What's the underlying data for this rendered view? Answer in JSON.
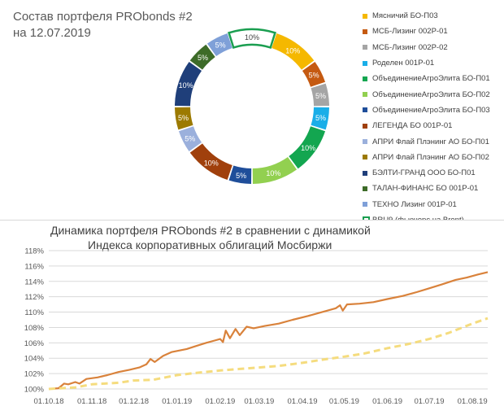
{
  "pie_panel": {
    "title_line1": "Состав портфеля PRObonds #2",
    "title_line2": "на 12.07.2019"
  },
  "line_panel": {
    "title_line1": "Динамика портфеля PRObonds #2 в сравнении с динамикой",
    "title_line2": "Индекса корпоративных облигаций Мосбиржи"
  },
  "chart_data": [
    {
      "type": "pie",
      "donut": true,
      "slices": [
        {
          "label": "Мясничий БО-П03",
          "value": 10,
          "data_label": "10%",
          "color": "#f5b800"
        },
        {
          "label": "МСБ-Лизинг 002Р-01",
          "value": 5,
          "data_label": "5%",
          "color": "#c55a11"
        },
        {
          "label": "МСБ-Лизинг 002Р-02",
          "value": 5,
          "data_label": "5%",
          "color": "#a5a5a5"
        },
        {
          "label": "Роделен 001Р-01",
          "value": 5,
          "data_label": "5%",
          "color": "#1aaee8"
        },
        {
          "label": "ОбъединениеАгроЭлита БО-П01",
          "value": 10,
          "data_label": "10%",
          "color": "#13a650"
        },
        {
          "label": "ОбъединениеАгроЭлита БО-П02",
          "value": 10,
          "data_label": "10%",
          "color": "#92d050"
        },
        {
          "label": "ОбъединениеАгроЭлита БО-П03",
          "value": 5,
          "data_label": "5%",
          "color": "#1f4e9a"
        },
        {
          "label": "ЛЕГЕНДА БО 001Р-01",
          "value": 10,
          "data_label": "10%",
          "color": "#a0400c"
        },
        {
          "label": "АПРИ Флай Плэнинг АО БО-П01",
          "value": 5,
          "data_label": "5%",
          "color": "#9bb0dc"
        },
        {
          "label": "АПРИ Флай Плэнинг АО БО-П02",
          "value": 5,
          "data_label": "5%",
          "color": "#9c7a00"
        },
        {
          "label": "БЭЛТИ-ГРАНД ООО БО-П01",
          "value": 10,
          "data_label": "10%",
          "color": "#1f3f7a"
        },
        {
          "label": "ТАЛАН-ФИНАНС БО 001Р-01",
          "value": 5,
          "data_label": "5%",
          "color": "#3d6b28"
        },
        {
          "label": "ТЕХНО Лизинг 001Р-01",
          "value": 5,
          "data_label": "5%",
          "color": "#7fa0d8"
        },
        {
          "label": "BRU9 (фьючерс на Brent)",
          "value": 10,
          "data_label": "10%",
          "color": "#ffffff",
          "outline": "#1a9e50"
        }
      ]
    },
    {
      "type": "line",
      "x_ticks": [
        "01.10.18",
        "01.11.18",
        "01.12.18",
        "01.01.19",
        "01.02.19",
        "01.03.19",
        "01.04.19",
        "01.05.19",
        "01.06.19",
        "01.07.19",
        "01.08.19"
      ],
      "y_ticks": [
        "100%",
        "102%",
        "104%",
        "106%",
        "108%",
        "110%",
        "112%",
        "114%",
        "116%",
        "118%"
      ],
      "ylim": [
        100,
        118
      ],
      "xlim": [
        "2018-10-01",
        "2019-08-12"
      ],
      "grid": true,
      "series": [
        {
          "color": "#d9823b",
          "dashed": false,
          "points": [
            [
              "2018-10-01",
              100.0
            ],
            [
              "2018-10-08",
              100.1
            ],
            [
              "2018-10-12",
              100.7
            ],
            [
              "2018-10-15",
              100.6
            ],
            [
              "2018-10-20",
              100.9
            ],
            [
              "2018-10-23",
              100.7
            ],
            [
              "2018-10-28",
              101.3
            ],
            [
              "2018-11-05",
              101.5
            ],
            [
              "2018-11-12",
              101.8
            ],
            [
              "2018-11-20",
              102.2
            ],
            [
              "2018-11-28",
              102.5
            ],
            [
              "2018-12-05",
              102.8
            ],
            [
              "2018-12-10",
              103.2
            ],
            [
              "2018-12-13",
              103.9
            ],
            [
              "2018-12-16",
              103.5
            ],
            [
              "2018-12-22",
              104.3
            ],
            [
              "2018-12-28",
              104.8
            ],
            [
              "2019-01-08",
              105.2
            ],
            [
              "2019-01-15",
              105.6
            ],
            [
              "2019-01-22",
              106.0
            ],
            [
              "2019-01-28",
              106.3
            ],
            [
              "2019-02-01",
              106.5
            ],
            [
              "2019-02-03",
              106.1
            ],
            [
              "2019-02-05",
              107.6
            ],
            [
              "2019-02-08",
              106.6
            ],
            [
              "2019-02-12",
              107.8
            ],
            [
              "2019-02-15",
              107.0
            ],
            [
              "2019-02-20",
              108.1
            ],
            [
              "2019-02-25",
              107.9
            ],
            [
              "2019-03-05",
              108.2
            ],
            [
              "2019-03-15",
              108.5
            ],
            [
              "2019-03-25",
              109.0
            ],
            [
              "2019-04-05",
              109.5
            ],
            [
              "2019-04-15",
              110.0
            ],
            [
              "2019-04-25",
              110.5
            ],
            [
              "2019-04-28",
              110.9
            ],
            [
              "2019-04-30",
              110.2
            ],
            [
              "2019-05-03",
              111.0
            ],
            [
              "2019-05-12",
              111.1
            ],
            [
              "2019-05-22",
              111.3
            ],
            [
              "2019-06-01",
              111.7
            ],
            [
              "2019-06-12",
              112.1
            ],
            [
              "2019-06-22",
              112.6
            ],
            [
              "2019-07-01",
              113.1
            ],
            [
              "2019-07-10",
              113.6
            ],
            [
              "2019-07-20",
              114.2
            ],
            [
              "2019-07-28",
              114.5
            ],
            [
              "2019-08-05",
              114.9
            ],
            [
              "2019-08-12",
              115.2
            ]
          ]
        },
        {
          "color": "#f5dc7e",
          "dashed": true,
          "points": [
            [
              "2018-10-01",
              100.0
            ],
            [
              "2018-10-20",
              100.2
            ],
            [
              "2018-11-01",
              100.6
            ],
            [
              "2018-11-20",
              100.8
            ],
            [
              "2018-12-01",
              101.1
            ],
            [
              "2018-12-15",
              101.2
            ],
            [
              "2019-01-01",
              101.8
            ],
            [
              "2019-01-15",
              102.1
            ],
            [
              "2019-02-01",
              102.4
            ],
            [
              "2019-02-15",
              102.6
            ],
            [
              "2019-03-01",
              102.8
            ],
            [
              "2019-03-15",
              103.0
            ],
            [
              "2019-04-01",
              103.4
            ],
            [
              "2019-04-15",
              103.8
            ],
            [
              "2019-05-01",
              104.2
            ],
            [
              "2019-05-15",
              104.6
            ],
            [
              "2019-06-01",
              105.3
            ],
            [
              "2019-06-15",
              105.8
            ],
            [
              "2019-07-01",
              106.5
            ],
            [
              "2019-07-15",
              107.3
            ],
            [
              "2019-08-01",
              108.5
            ],
            [
              "2019-08-12",
              109.2
            ]
          ]
        }
      ]
    }
  ]
}
